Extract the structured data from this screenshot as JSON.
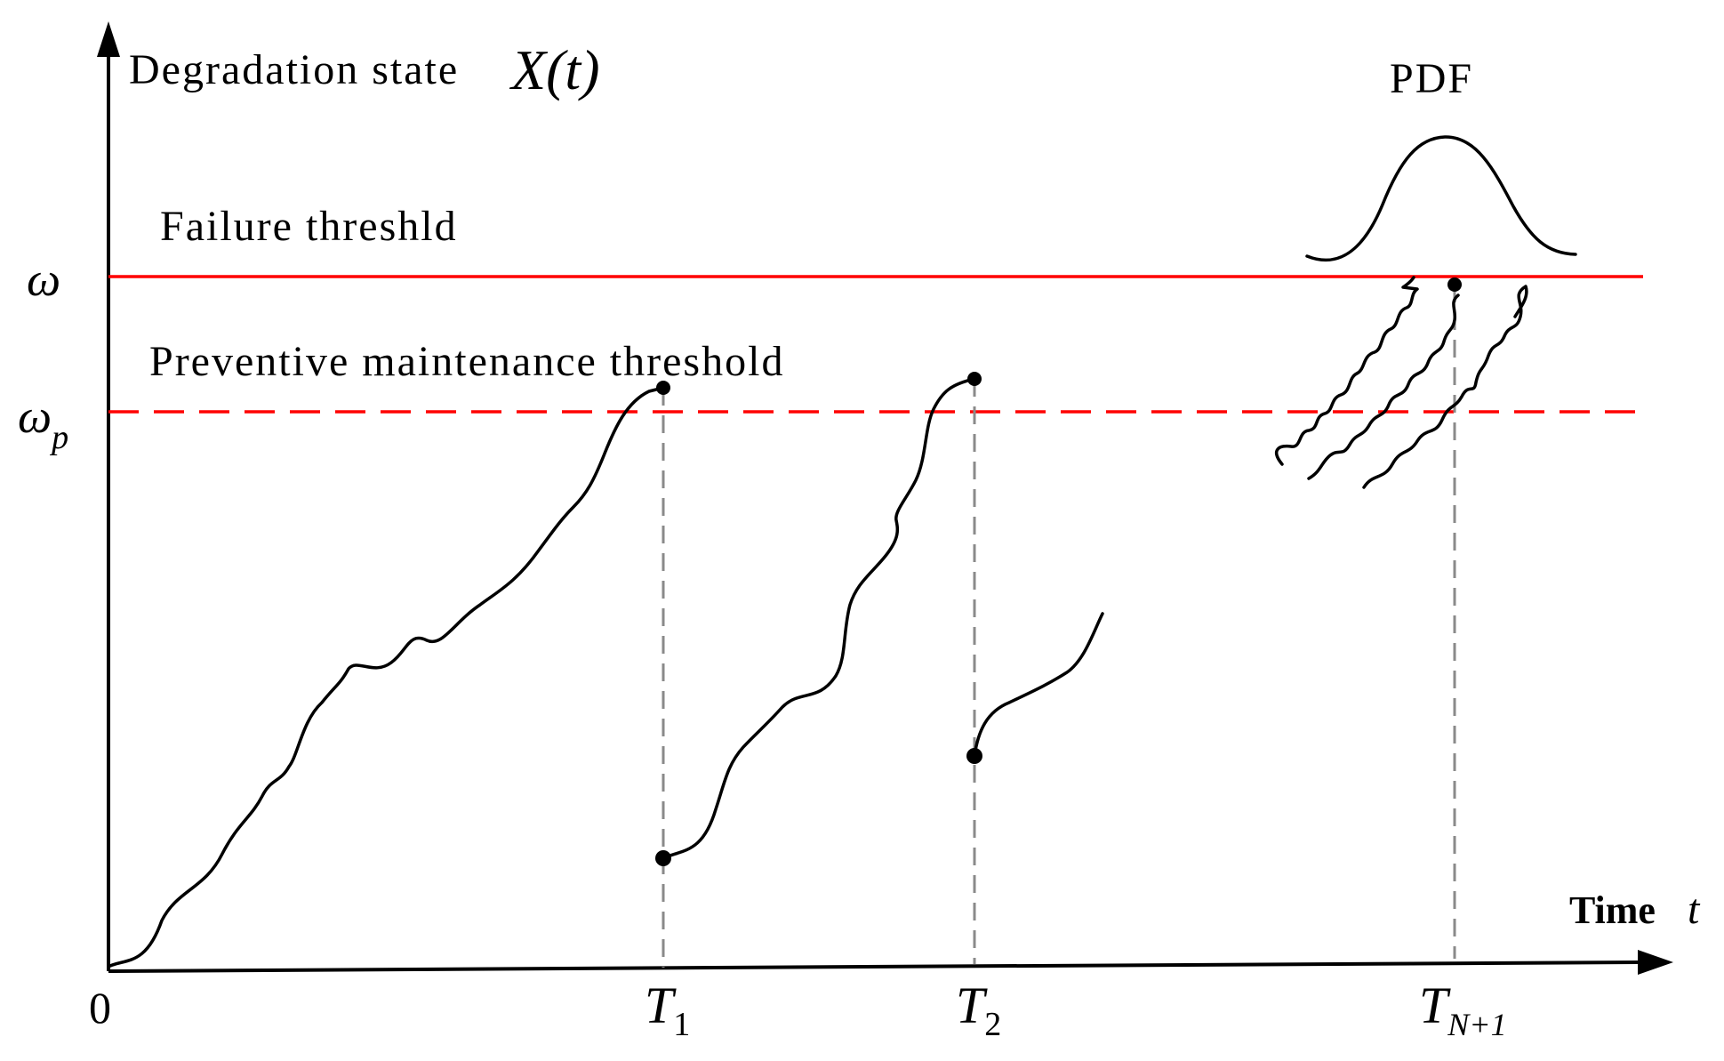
{
  "diagram": {
    "y_axis_label": "Degradation state",
    "y_axis_symbol": "X(t)",
    "x_axis_label": "Time",
    "x_axis_symbol": "t",
    "origin_label": "0",
    "failure_threshold": {
      "label": "Failure threshld",
      "symbol": "ω",
      "color": "#ff0000",
      "style": "solid"
    },
    "pm_threshold": {
      "label": "Preventive maintenance threshold",
      "symbol": "ω",
      "subscript": "p",
      "color": "#ff0000",
      "style": "dashed"
    },
    "pdf_label": "PDF",
    "time_markers": [
      {
        "symbol": "T",
        "subscript": "1"
      },
      {
        "symbol": "T",
        "subscript": "2"
      },
      {
        "symbol": "T",
        "subscript": "N+1"
      }
    ],
    "colors": {
      "axis": "#000000",
      "curve": "#000000",
      "marker_line": "#8a8a8a"
    }
  }
}
